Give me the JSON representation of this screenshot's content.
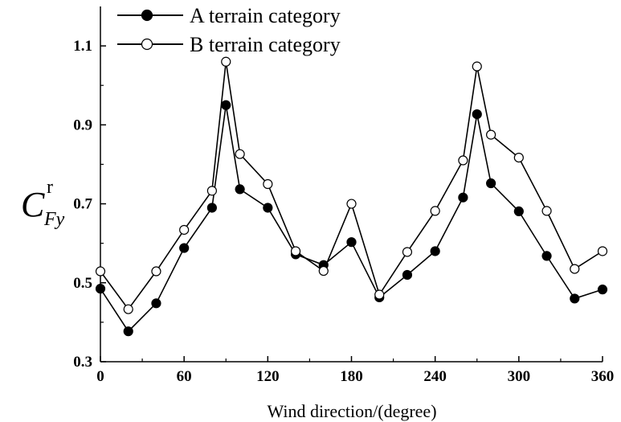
{
  "chart_data": {
    "type": "line",
    "title": "",
    "xlabel": "Wind direction/(degree)",
    "ylabel": {
      "main": "C",
      "superscript": "r",
      "subscript": "Fy"
    },
    "xlim": [
      0,
      360
    ],
    "ylim": [
      0.3,
      1.2
    ],
    "xticks": [
      0,
      60,
      120,
      180,
      240,
      300,
      360
    ],
    "yticks": [
      0.3,
      0.5,
      0.7,
      0.9,
      1.1
    ],
    "ytick_labels": [
      "0.3",
      "0.5",
      "0.7",
      "0.9",
      "1.1"
    ],
    "grid": false,
    "legend_position": "top-left",
    "x": [
      0,
      20,
      40,
      60,
      80,
      90,
      100,
      120,
      140,
      160,
      180,
      200,
      220,
      240,
      260,
      270,
      280,
      300,
      320,
      340,
      360
    ],
    "series": [
      {
        "name": "A terrain category",
        "marker": "filled-circle",
        "values": [
          0.485,
          0.377,
          0.448,
          0.588,
          0.69,
          0.95,
          0.737,
          0.69,
          0.572,
          0.545,
          0.603,
          0.463,
          0.52,
          0.58,
          0.716,
          0.927,
          0.752,
          0.681,
          0.568,
          0.46,
          0.483
        ]
      },
      {
        "name": "B terrain category",
        "marker": "open-circle",
        "values": [
          0.529,
          0.433,
          0.529,
          0.634,
          0.733,
          1.06,
          0.826,
          0.75,
          0.58,
          0.53,
          0.7,
          0.47,
          0.578,
          0.682,
          0.81,
          1.048,
          0.875,
          0.817,
          0.682,
          0.535,
          0.58
        ]
      }
    ],
    "colors": {
      "line": "#000000",
      "open_marker_fill": "#ffffff"
    }
  }
}
